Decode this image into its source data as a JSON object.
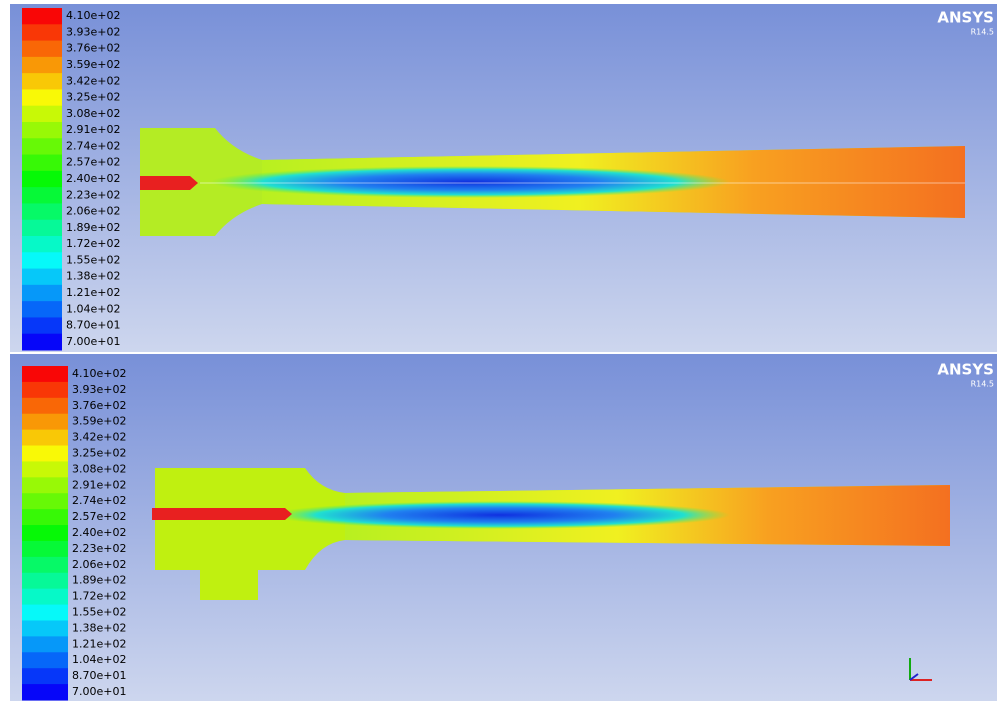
{
  "panels": [
    {
      "colorbar_labels": [
        "4.10e+02",
        "3.93e+02",
        "3.76e+02",
        "3.59e+02",
        "3.42e+02",
        "3.25e+02",
        "3.08e+02",
        "2.91e+02",
        "2.74e+02",
        "2.57e+02",
        "2.40e+02",
        "2.23e+02",
        "2.06e+02",
        "1.89e+02",
        "1.72e+02",
        "1.55e+02",
        "1.38e+02",
        "1.21e+02",
        "1.04e+02",
        "8.70e+01",
        "7.00e+01"
      ],
      "logo": "ANSYS",
      "version": "R14.5"
    },
    {
      "colorbar_labels": [
        "4.10e+02",
        "3.93e+02",
        "3.76e+02",
        "3.59e+02",
        "3.42e+02",
        "3.25e+02",
        "3.08e+02",
        "2.91e+02",
        "2.74e+02",
        "2.57e+02",
        "2.40e+02",
        "2.23e+02",
        "2.06e+02",
        "1.89e+02",
        "1.72e+02",
        "1.55e+02",
        "1.38e+02",
        "1.21e+02",
        "1.04e+02",
        "8.70e+01",
        "7.00e+01"
      ],
      "logo": "ANSYS",
      "version": "R14.5"
    }
  ]
}
